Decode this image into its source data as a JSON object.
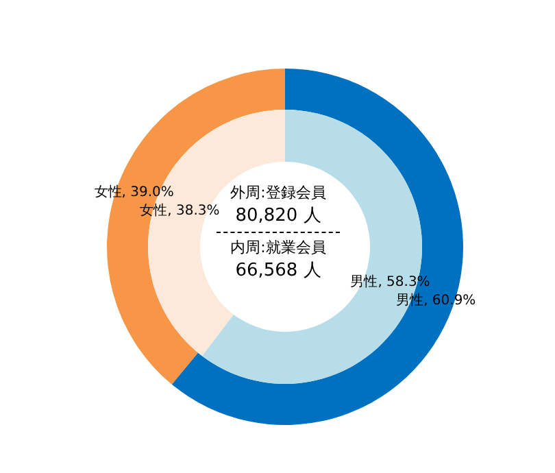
{
  "chart_data": {
    "type": "donut",
    "categories": [
      "男性",
      "女性"
    ],
    "series": [
      {
        "values": [
          60.9,
          39.0
        ],
        "colors": [
          "#0070c0",
          "#f79646"
        ],
        "value_labels": [
          ", 60.9%",
          ", 39.0%"
        ]
      },
      {
        "values": [
          58.3,
          38.3
        ],
        "colors": [
          "#b7dde8",
          "#fde9d9"
        ],
        "value_labels": [
          ", 58.3%",
          ", 38.3%"
        ]
      }
    ],
    "annotations": [
      "外周:登録会員",
      "80,820 人",
      "内周:就業会員",
      "66,568 人"
    ],
    "legend": false
  }
}
